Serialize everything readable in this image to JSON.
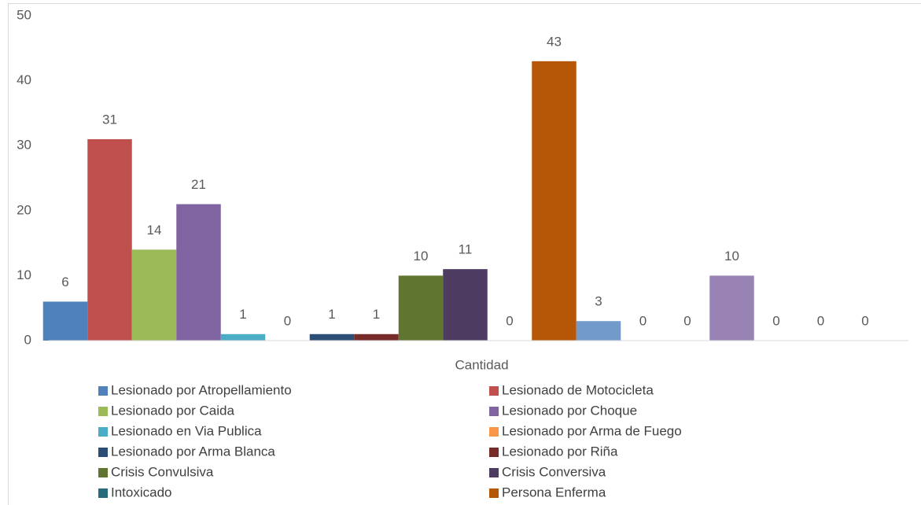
{
  "chart_data": {
    "type": "bar",
    "categories": [
      "Cantidad"
    ],
    "series": [
      {
        "name": "Lesionado por Atropellamiento",
        "color": "#4f81bd",
        "values": [
          6
        ]
      },
      {
        "name": "Lesionado de Motocicleta",
        "color": "#c0504d",
        "values": [
          31
        ]
      },
      {
        "name": "Lesionado por Caida",
        "color": "#9bbb59",
        "values": [
          14
        ]
      },
      {
        "name": "Lesionado por Choque",
        "color": "#8064a2",
        "values": [
          21
        ]
      },
      {
        "name": "Lesionado en Via Publica",
        "color": "#4bacc6",
        "values": [
          1
        ]
      },
      {
        "name": "Lesionado por Arma de Fuego",
        "color": "#f79646",
        "values": [
          0
        ]
      },
      {
        "name": "Lesionado por Arma Blanca",
        "color": "#2c4d75",
        "values": [
          1
        ]
      },
      {
        "name": "Lesionado por Riña",
        "color": "#772c2a",
        "values": [
          1
        ]
      },
      {
        "name": "Crisis Convulsiva",
        "color": "#5f7530",
        "values": [
          10
        ]
      },
      {
        "name": "Crisis Conversiva",
        "color": "#4d3b62",
        "values": [
          11
        ]
      },
      {
        "name": "Intoxicado",
        "color": "#276a7c",
        "values": [
          0
        ]
      },
      {
        "name": "Persona Enferma",
        "color": "#b65708",
        "values": [
          43
        ]
      },
      {
        "name": null,
        "color": "#729aca",
        "values": [
          3
        ]
      },
      {
        "name": null,
        "color": "#cd7371",
        "values": [
          0
        ]
      },
      {
        "name": null,
        "color": "#afc97a",
        "values": [
          0
        ]
      },
      {
        "name": null,
        "color": "#9983b5",
        "values": [
          10
        ]
      },
      {
        "name": null,
        "color": "#6fbdd1",
        "values": [
          0
        ]
      },
      {
        "name": null,
        "color": "#f9ab6b",
        "values": [
          0
        ]
      },
      {
        "name": null,
        "color": "#3a679c",
        "values": [
          0
        ]
      }
    ],
    "ylim": [
      0,
      50
    ],
    "yticks": [
      0,
      10,
      20,
      30,
      40,
      50
    ],
    "grid": false,
    "legend": "bottom"
  }
}
